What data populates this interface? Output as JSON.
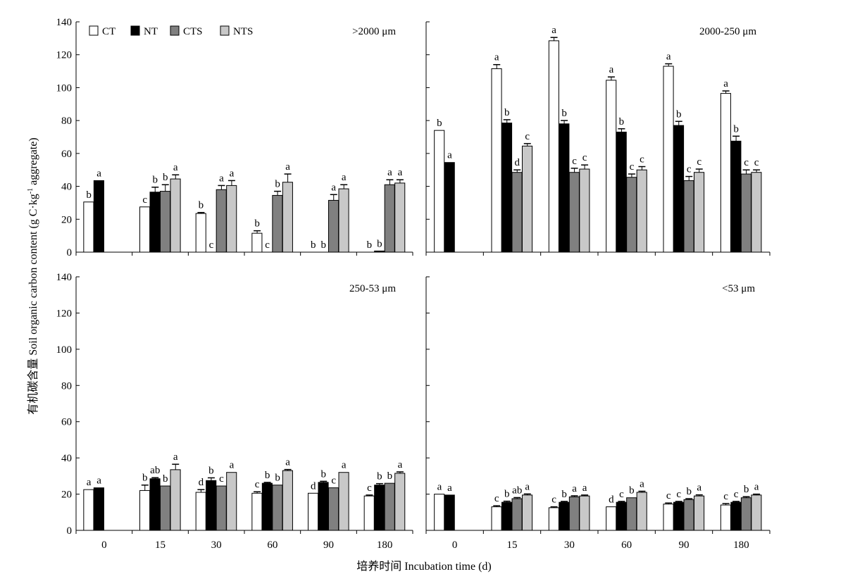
{
  "chart_data": [
    {
      "type": "bar",
      "title": ">2000 μm",
      "categories": [
        "0",
        "15",
        "30",
        "60",
        "90",
        "180"
      ],
      "series": [
        {
          "name": "CT",
          "values": [
            30.5,
            27.5,
            23.5,
            11.5,
            null,
            null
          ],
          "errors": [
            0,
            0,
            0.6,
            1.5,
            0,
            0
          ],
          "letters": [
            "b",
            "c",
            "b",
            "b",
            "b",
            "b"
          ]
        },
        {
          "name": "NT",
          "values": [
            43.5,
            36.5,
            null,
            null,
            null,
            0.7
          ],
          "errors": [
            0,
            3.0,
            0,
            0,
            0,
            0
          ],
          "letters": [
            "a",
            "b",
            "c",
            "c",
            "b",
            "b"
          ]
        },
        {
          "name": "CTS",
          "values": [
            null,
            37.0,
            38.0,
            34.5,
            31.5,
            41.0
          ],
          "errors": [
            0,
            4.0,
            2.5,
            2.5,
            3.5,
            3.0
          ],
          "letters": [
            "",
            "b",
            "a",
            "b",
            "a",
            "a"
          ]
        },
        {
          "name": "NTS",
          "values": [
            null,
            44.5,
            40.5,
            42.5,
            38.5,
            42.0
          ],
          "errors": [
            0,
            2.5,
            3.0,
            5.0,
            2.5,
            2.0
          ],
          "letters": [
            "",
            "a",
            "a",
            "a",
            "a",
            "a"
          ]
        }
      ],
      "ylim": [
        0,
        140
      ]
    },
    {
      "type": "bar",
      "title": "2000-250 μm",
      "categories": [
        "0",
        "15",
        "30",
        "60",
        "90",
        "180"
      ],
      "series": [
        {
          "name": "CT",
          "values": [
            74,
            111.5,
            128.5,
            104.5,
            113,
            96.5
          ],
          "errors": [
            0,
            2.5,
            2.0,
            2.0,
            1.5,
            1.5
          ],
          "letters": [
            "b",
            "a",
            "a",
            "a",
            "a",
            "a"
          ]
        },
        {
          "name": "NT",
          "values": [
            54.5,
            78.5,
            78,
            73,
            77,
            67.5
          ],
          "errors": [
            0,
            2.0,
            2.0,
            2.0,
            2.5,
            3.0
          ],
          "letters": [
            "a",
            "b",
            "b",
            "b",
            "b",
            "b"
          ]
        },
        {
          "name": "CTS",
          "values": [
            null,
            48.5,
            48.5,
            45.5,
            43.5,
            47.5
          ],
          "errors": [
            0,
            1.5,
            2.5,
            2.0,
            2.5,
            2.5
          ],
          "letters": [
            "",
            "d",
            "c",
            "c",
            "c",
            "c"
          ]
        },
        {
          "name": "NTS",
          "values": [
            null,
            64.5,
            50.5,
            50,
            48.5,
            48.5
          ],
          "errors": [
            0,
            1.5,
            2.5,
            2.0,
            2.0,
            1.5
          ],
          "letters": [
            "",
            "c",
            "c",
            "c",
            "c",
            "c"
          ]
        }
      ],
      "ylim": [
        0,
        140
      ]
    },
    {
      "type": "bar",
      "title": "250-53 μm",
      "categories": [
        "0",
        "15",
        "30",
        "60",
        "90",
        "180"
      ],
      "series": [
        {
          "name": "CT",
          "values": [
            22.5,
            22.0,
            21.0,
            20.5,
            20.5,
            19.0
          ],
          "errors": [
            0,
            3.0,
            1.5,
            0.8,
            0,
            0.5
          ],
          "letters": [
            "a",
            "b",
            "d",
            "c",
            "d",
            "c"
          ]
        },
        {
          "name": "NT",
          "values": [
            23.5,
            28.5,
            27.5,
            26.0,
            26.5,
            25.0
          ],
          "errors": [
            0,
            0.6,
            1.5,
            0.5,
            0.6,
            0.8
          ],
          "letters": [
            "a",
            "ab",
            "b",
            "b",
            "b",
            "b"
          ]
        },
        {
          "name": "CTS",
          "values": [
            null,
            24.5,
            24.5,
            25.0,
            23.5,
            26.0
          ],
          "errors": [
            0,
            0,
            0,
            0,
            0,
            0
          ],
          "letters": [
            "",
            "b",
            "c",
            "b",
            "c",
            "b"
          ]
        },
        {
          "name": "NTS",
          "values": [
            null,
            33.5,
            32.0,
            33.0,
            32.0,
            31.5
          ],
          "errors": [
            0,
            3.0,
            0,
            0.6,
            0,
            0.8
          ],
          "letters": [
            "",
            "a",
            "a",
            "a",
            "a",
            "a"
          ]
        }
      ],
      "ylim": [
        0,
        140
      ]
    },
    {
      "type": "bar",
      "title": "<53 μm",
      "categories": [
        "0",
        "15",
        "30",
        "60",
        "90",
        "180"
      ],
      "series": [
        {
          "name": "CT",
          "values": [
            20.0,
            13.0,
            12.5,
            13.0,
            14.5,
            14.0
          ],
          "errors": [
            0,
            0.6,
            0.5,
            0,
            0.6,
            0.8
          ],
          "letters": [
            "a",
            "c",
            "c",
            "d",
            "c",
            "c"
          ]
        },
        {
          "name": "NT",
          "values": [
            19.5,
            15.5,
            15.5,
            15.5,
            15.5,
            15.5
          ],
          "errors": [
            0,
            0.6,
            0.5,
            0.5,
            0.5,
            0.5
          ],
          "letters": [
            "a",
            "b",
            "b",
            "c",
            "c",
            "c"
          ]
        },
        {
          "name": "CTS",
          "values": [
            null,
            17.5,
            18.5,
            18.0,
            17.0,
            18.0
          ],
          "errors": [
            0,
            0.6,
            0.6,
            0,
            0.5,
            0.6
          ],
          "letters": [
            "",
            "ab",
            "a",
            "b",
            "b",
            "b"
          ]
        },
        {
          "name": "NTS",
          "values": [
            null,
            19.5,
            19.0,
            21.0,
            19.0,
            19.5
          ],
          "errors": [
            0,
            0.6,
            0.5,
            0.6,
            0.6,
            0.5
          ],
          "letters": [
            "",
            "a",
            "a",
            "a",
            "a",
            "a"
          ]
        }
      ],
      "ylim": [
        0,
        140
      ]
    }
  ],
  "legend": [
    {
      "name": "CT",
      "color": "#ffffff"
    },
    {
      "name": "NT",
      "color": "#000000"
    },
    {
      "name": "CTS",
      "color": "#808080"
    },
    {
      "name": "NTS",
      "color": "#c8c8c8"
    }
  ],
  "ytick_labels": [
    "0",
    "20",
    "40",
    "60",
    "80",
    "100",
    "120",
    "140"
  ],
  "ylabel": "有机碳含量 Soil organic carbon content (g C·kg",
  "ylabel_sup": "-1",
  "ylabel_tail": " aggregate)",
  "xlabel": "培养时间 Incubation time (d)"
}
